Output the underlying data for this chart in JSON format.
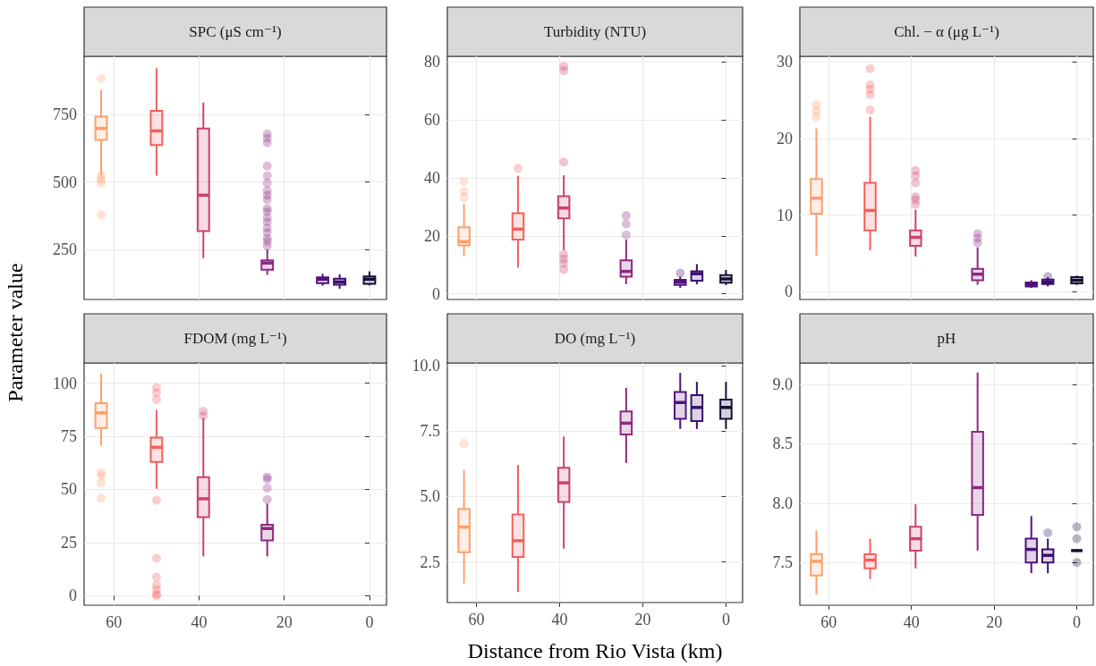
{
  "chart_data": [
    {
      "type": "box",
      "title": "SPC (μS cm⁻¹)",
      "ylabel": "Parameter value",
      "x": [
        63,
        50,
        39,
        24,
        11,
        7,
        0
      ],
      "xlim": [
        67,
        -4
      ],
      "xticks": [
        60,
        40,
        20,
        0
      ],
      "ylim": [
        65,
        965
      ],
      "yticks": [
        250,
        500,
        750
      ],
      "grid": true,
      "tick_labels": "y",
      "colors": [
        "#fe9f6d",
        "#f1605d",
        "#cd4071",
        "#8c2981",
        "#51127c",
        "#3b0f70",
        "#140e36"
      ],
      "boxes": [
        {
          "low": 525,
          "q1": 656,
          "median": 698,
          "q3": 742,
          "high": 842,
          "outliers": [
            883,
            523,
            510,
            497,
            379
          ]
        },
        {
          "low": 523,
          "q1": 637,
          "median": 689,
          "q3": 763,
          "high": 921
        },
        {
          "low": 218,
          "q1": 318,
          "median": 451,
          "q3": 698,
          "high": 794
        },
        {
          "low": 156,
          "q1": 175,
          "median": 200,
          "q3": 210,
          "high": 250,
          "outliers": [
            678,
            662,
            645,
            559,
            523,
            496,
            468,
            451,
            435,
            402,
            390,
            368,
            352,
            330,
            313,
            291,
            280,
            263
          ]
        },
        {
          "low": 116,
          "q1": 125,
          "median": 140,
          "q3": 147,
          "high": 160
        },
        {
          "low": 105,
          "q1": 120,
          "median": 130,
          "q3": 142,
          "high": 158
        },
        {
          "low": 117,
          "q1": 123,
          "median": 140,
          "q3": 150,
          "high": 169
        }
      ]
    },
    {
      "type": "box",
      "title": "Turbidity (NTU)",
      "x": [
        63,
        50,
        39,
        24,
        11,
        7,
        0
      ],
      "xlim": [
        67,
        -4
      ],
      "xticks": [
        60,
        40,
        20,
        0
      ],
      "ylim": [
        -2,
        82
      ],
      "yticks": [
        0,
        20,
        40,
        60,
        80
      ],
      "grid": true,
      "tick_labels": "y",
      "colors": [
        "#fe9f6d",
        "#f1605d",
        "#cd4071",
        "#8c2981",
        "#51127c",
        "#3b0f70",
        "#140e36"
      ],
      "boxes": [
        {
          "low": 13,
          "q1": 16.7,
          "median": 18,
          "q3": 22.9,
          "high": 31,
          "outliers": [
            38.8,
            35.4,
            33.2
          ]
        },
        {
          "low": 9,
          "q1": 18.7,
          "median": 22.3,
          "q3": 27.8,
          "high": 40.7,
          "outliers": [
            43.3
          ]
        },
        {
          "low": 15,
          "q1": 26,
          "median": 29.6,
          "q3": 33.7,
          "high": 40.9,
          "outliers": [
            78.5,
            77,
            45.5,
            13.6,
            12,
            10.5,
            8.4
          ]
        },
        {
          "low": 3.3,
          "q1": 5.9,
          "median": 7.7,
          "q3": 11.5,
          "high": 18.7,
          "outliers": [
            27,
            24.1,
            20.3
          ]
        },
        {
          "low": 2,
          "q1": 3,
          "median": 4,
          "q3": 4.8,
          "high": 5.9,
          "outliers": [
            7.1
          ]
        },
        {
          "low": 3.3,
          "q1": 4.5,
          "median": 6.9,
          "q3": 7.7,
          "high": 10.2
        },
        {
          "low": 3,
          "q1": 3.8,
          "median": 5.1,
          "q3": 6.4,
          "high": 8.2
        }
      ]
    },
    {
      "type": "box",
      "title": "Chl. − α (μg L⁻¹)",
      "x": [
        63,
        50,
        39,
        24,
        11,
        7,
        0
      ],
      "xlim": [
        67,
        -4
      ],
      "xticks": [
        60,
        40,
        20,
        0
      ],
      "ylim": [
        -1,
        30.7
      ],
      "yticks": [
        0,
        10,
        20,
        30
      ],
      "grid": true,
      "tick_labels": "y",
      "colors": [
        "#fe9f6d",
        "#f1605d",
        "#cd4071",
        "#8c2981",
        "#51127c",
        "#3b0f70",
        "#140e36"
      ],
      "boxes": [
        {
          "low": 4.7,
          "q1": 10.2,
          "median": 12.2,
          "q3": 14.7,
          "high": 21.3,
          "outliers": [
            24.4,
            23.6,
            22.8
          ]
        },
        {
          "low": 5.4,
          "q1": 8,
          "median": 10.6,
          "q3": 14.2,
          "high": 22.8,
          "outliers": [
            29.1,
            27,
            26.4,
            25.7,
            23.7
          ]
        },
        {
          "low": 4.6,
          "q1": 6,
          "median": 7.1,
          "q3": 8,
          "high": 10.7,
          "outliers": [
            15.8,
            15.1,
            14.2,
            12.4,
            12,
            11.4
          ]
        },
        {
          "low": 0.9,
          "q1": 1.5,
          "median": 2.3,
          "q3": 3,
          "high": 5.8,
          "outliers": [
            7.6,
            7,
            6.4
          ]
        },
        {
          "low": 0.5,
          "q1": 0.7,
          "median": 0.9,
          "q3": 1.2,
          "high": 1.5
        },
        {
          "low": 0.7,
          "q1": 1,
          "median": 1.3,
          "q3": 1.6,
          "high": 1.9,
          "outliers": [
            2
          ]
        },
        {
          "low": 0.9,
          "q1": 1.1,
          "median": 1.5,
          "q3": 1.9,
          "high": 2.1
        }
      ]
    },
    {
      "type": "box",
      "title": "FDOM (mg L⁻¹)",
      "x": [
        63,
        50,
        39,
        24
      ],
      "xlim": [
        67,
        -4
      ],
      "xticks": [
        60,
        40,
        20,
        0
      ],
      "ylim": [
        -4.5,
        109.5
      ],
      "yticks": [
        0,
        25,
        50,
        75,
        100
      ],
      "grid": true,
      "colors": [
        "#fe9f6d",
        "#f1605d",
        "#cd4071",
        "#8c2981"
      ],
      "boxes": [
        {
          "low": 70.5,
          "q1": 78.9,
          "median": 86,
          "q3": 90.6,
          "high": 104.4,
          "outliers": [
            57.9,
            56.5,
            53.1,
            45.9
          ]
        },
        {
          "low": 50.3,
          "q1": 62.9,
          "median": 69.8,
          "q3": 74.4,
          "high": 87.4,
          "outliers": [
            97.9,
            95.5,
            92.3,
            44.9,
            17.6,
            8.7,
            4.9,
            2.8,
            0.7,
            0
          ]
        },
        {
          "low": 18.5,
          "q1": 36.9,
          "median": 45.6,
          "q3": 55.8,
          "high": 83.6,
          "outliers": [
            86.8,
            84.6
          ]
        },
        {
          "low": 18.5,
          "q1": 26,
          "median": 31.6,
          "q3": 33.4,
          "high": 43.3,
          "outliers": [
            55.9,
            54.8,
            50.6,
            45.2
          ]
        }
      ]
    },
    {
      "type": "box",
      "title": "DO (mg L⁻¹)",
      "xlabel": "Distance from Rio Vista (km)",
      "x": [
        63,
        50,
        39,
        24,
        11,
        7,
        0
      ],
      "xlim": [
        67,
        -4
      ],
      "xticks": [
        60,
        40,
        20,
        0
      ],
      "ylim": [
        0.95,
        10.1
      ],
      "yticks": [
        2.5,
        {
          "value": 5,
          "label": "5.0"
        },
        7.5,
        {
          "value": 10,
          "label": "10.0"
        }
      ],
      "grid": true,
      "colors": [
        "#fe9f6d",
        "#f1605d",
        "#cd4071",
        "#8c2981",
        "#51127c",
        "#3b0f70",
        "#140e36"
      ],
      "boxes": [
        {
          "low": 1.68,
          "q1": 2.87,
          "median": 3.83,
          "q3": 4.53,
          "high": 6.0,
          "outliers": [
            7.03
          ]
        },
        {
          "low": 1.35,
          "q1": 2.69,
          "median": 3.31,
          "q3": 4.31,
          "high": 6.2
        },
        {
          "low": 3.01,
          "q1": 4.79,
          "median": 5.52,
          "q3": 6.1,
          "high": 7.29
        },
        {
          "low": 6.28,
          "q1": 7.37,
          "median": 7.8,
          "q3": 8.25,
          "high": 9.15
        },
        {
          "low": 7.58,
          "q1": 7.97,
          "median": 8.59,
          "q3": 8.99,
          "high": 9.72
        },
        {
          "low": 7.58,
          "q1": 7.88,
          "median": 8.4,
          "q3": 8.87,
          "high": 9.38
        },
        {
          "low": 7.58,
          "q1": 7.97,
          "median": 8.4,
          "q3": 8.7,
          "high": 9.38
        }
      ]
    },
    {
      "type": "box",
      "title": "pH",
      "x": [
        63,
        50,
        39,
        24,
        11,
        7,
        0
      ],
      "xlim": [
        67,
        -4
      ],
      "xticks": [
        60,
        40,
        20,
        0
      ],
      "ylim": [
        7.14,
        9.18
      ],
      "yticks": [
        7.5,
        {
          "value": 8,
          "label": "8.0"
        },
        8.5,
        {
          "value": 9,
          "label": "9.0"
        }
      ],
      "grid": true,
      "colors": [
        "#fe9f6d",
        "#f1605d",
        "#cd4071",
        "#8c2981",
        "#51127c",
        "#3b0f70",
        "#140e36"
      ],
      "boxes": [
        {
          "low": 7.23,
          "q1": 7.39,
          "median": 7.51,
          "q3": 7.57,
          "high": 7.77
        },
        {
          "low": 7.36,
          "q1": 7.45,
          "median": 7.52,
          "q3": 7.57,
          "high": 7.7
        },
        {
          "low": 7.45,
          "q1": 7.6,
          "median": 7.7,
          "q3": 7.8,
          "high": 7.99
        },
        {
          "low": 7.6,
          "q1": 7.9,
          "median": 8.13,
          "q3": 8.6,
          "high": 9.1
        },
        {
          "low": 7.41,
          "q1": 7.5,
          "median": 7.61,
          "q3": 7.7,
          "high": 7.89
        },
        {
          "low": 7.41,
          "q1": 7.5,
          "median": 7.56,
          "q3": 7.61,
          "high": 7.7,
          "outliers": [
            7.75
          ]
        },
        {
          "low": 7.6,
          "q1": 7.6,
          "median": 7.6,
          "q3": 7.6,
          "high": 7.6,
          "outliers": [
            7.8,
            7.7,
            7.5
          ]
        }
      ]
    }
  ]
}
